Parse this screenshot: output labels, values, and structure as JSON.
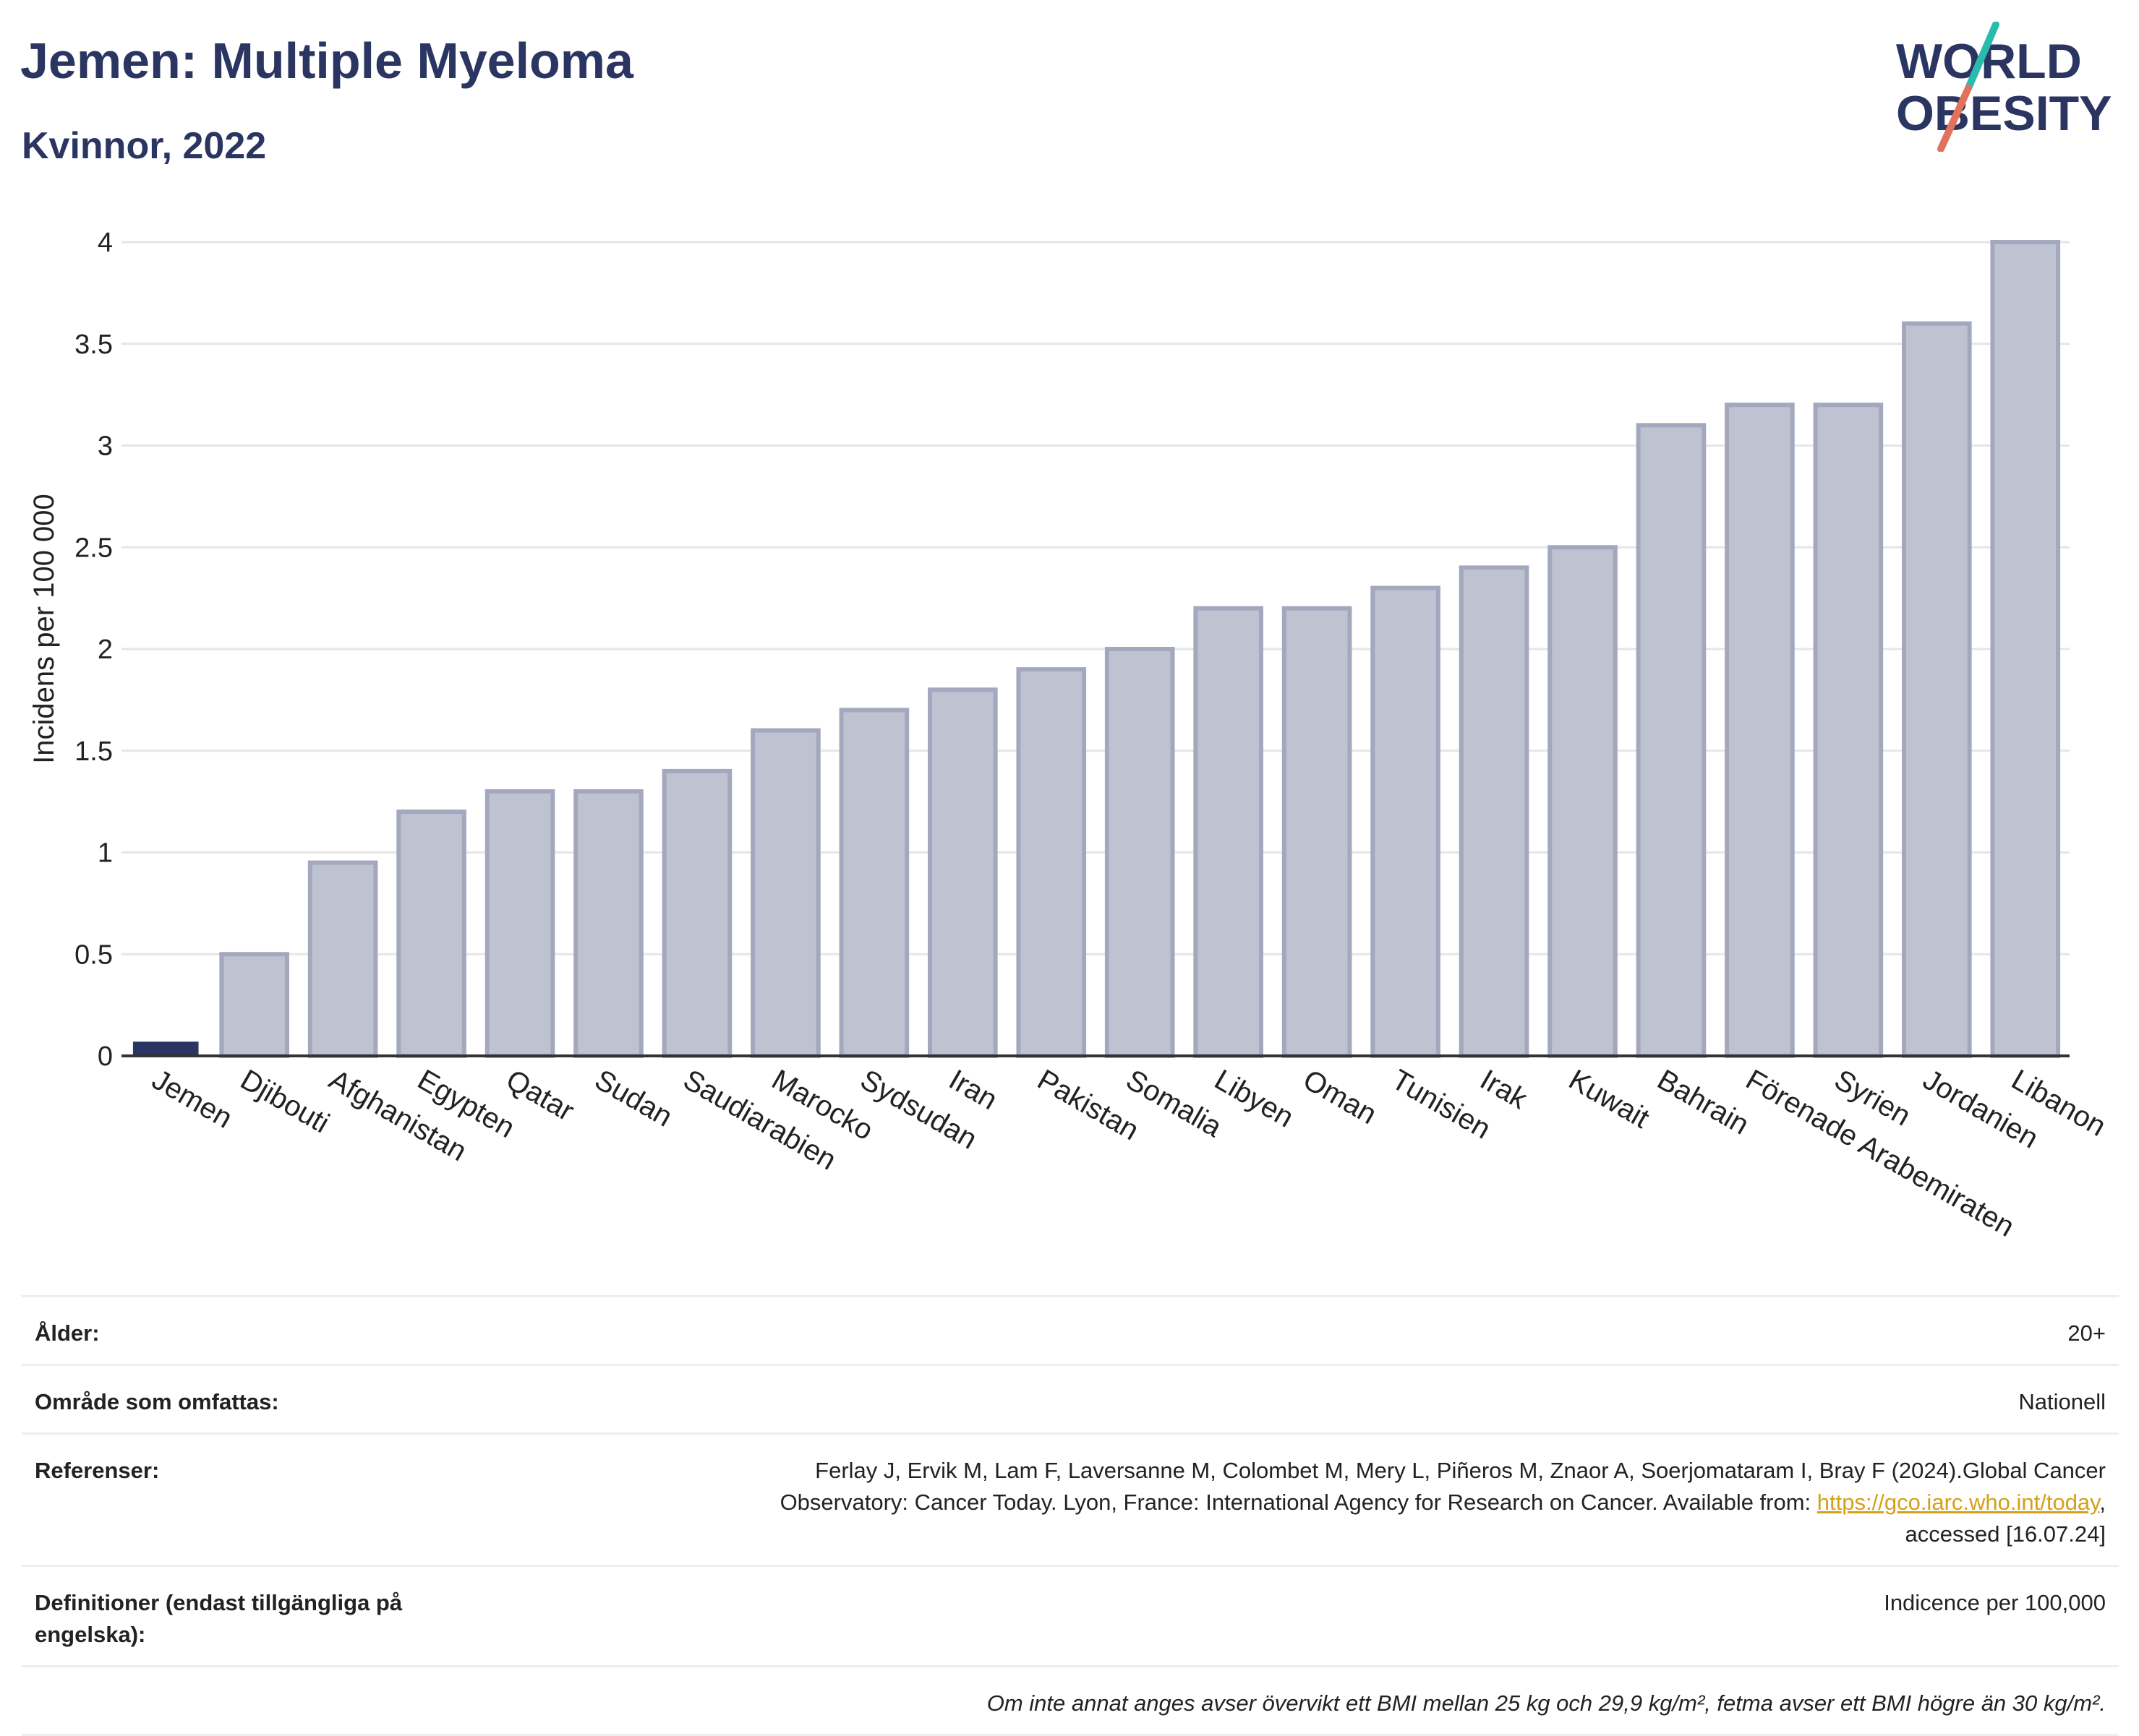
{
  "header": {
    "title": "Jemen: Multiple Myeloma",
    "subtitle": "Kvinnor, 2022"
  },
  "logo": {
    "line1": "WORLD",
    "line2": "OBESITY",
    "accent_colors": [
      "#2bbbad",
      "#e2725b"
    ]
  },
  "colors": {
    "highlight": "#2b3561",
    "bar_fill": "#bfc2d0",
    "bar_stroke": "#a3a8bf",
    "grid": "#e6e6e6",
    "link": "#d4a017"
  },
  "chart_data": {
    "type": "bar",
    "ylabel": "Incidens per 100 000",
    "ylim": [
      0,
      4
    ],
    "yticks": [
      0,
      0.5,
      1,
      1.5,
      2,
      2.5,
      3,
      3.5,
      4
    ],
    "ytick_labels": [
      "0",
      "0.5",
      "1",
      "1.5",
      "2",
      "2.5",
      "3",
      "3.5",
      "4"
    ],
    "grid": true,
    "highlight_category": "Jemen",
    "categories": [
      "Jemen",
      "Djibouti",
      "Afghanistan",
      "Egypten",
      "Qatar",
      "Sudan",
      "Saudiarabien",
      "Marocko",
      "Sydsudan",
      "Iran",
      "Pakistan",
      "Somalia",
      "Libyen",
      "Oman",
      "Tunisien",
      "Irak",
      "Kuwait",
      "Bahrain",
      "Förenade Arabemiraten",
      "Syrien",
      "Jordanien",
      "Libanon"
    ],
    "values": [
      0.07,
      0.5,
      0.95,
      1.2,
      1.3,
      1.3,
      1.4,
      1.6,
      1.7,
      1.8,
      1.9,
      2.0,
      2.2,
      2.2,
      2.3,
      2.4,
      2.5,
      3.1,
      3.2,
      3.2,
      3.6,
      4.0
    ]
  },
  "info": {
    "age_label": "Ålder:",
    "age_value": "20+",
    "area_label": "Område som omfattas:",
    "area_value": "Nationell",
    "ref_label": "Referenser:",
    "ref_text_1": "Ferlay J, Ervik M, Lam F, Laversanne M, Colombet M, Mery L, Piñeros M, Znaor A, Soerjomataram I, Bray F (2024).Global Cancer",
    "ref_text_2": "Observatory: Cancer Today. Lyon, France: International Agency for Research on Cancer. Available from: ",
    "ref_link": "https://gco.iarc.who.int/today",
    "ref_text_3": ",",
    "ref_text_4": "accessed [16.07.24]",
    "def_label": "Definitioner (endast tillgängliga på engelska):",
    "def_value": "Indicence per 100,000",
    "note": "Om inte annat anges avser övervikt ett BMI mellan 25 kg och 29,9 kg/m², fetma avser ett BMI högre än 30 kg/m²."
  }
}
